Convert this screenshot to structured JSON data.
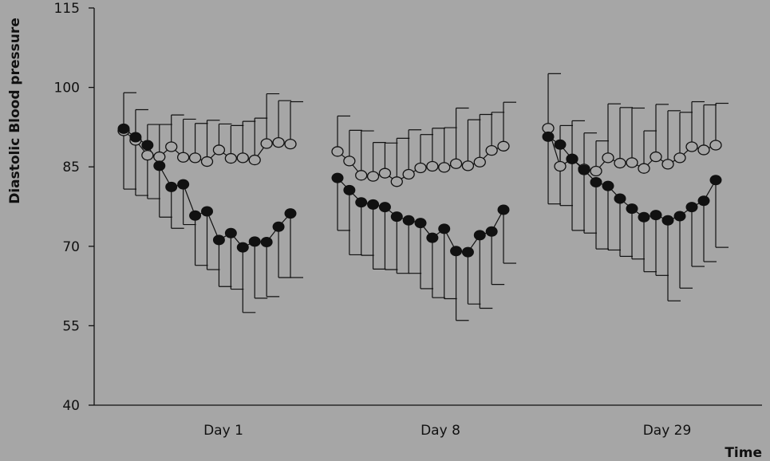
{
  "chart_data": {
    "type": "line",
    "title": "",
    "xlabel": "Time",
    "ylabel": "Diastolic Blood pressure",
    "ylim": [
      40,
      115
    ],
    "yticks": [
      40,
      55,
      70,
      85,
      100,
      115
    ],
    "xticks": [
      "Day 1",
      "Day 8",
      "Day 29"
    ],
    "grid": false,
    "legend": "none",
    "marker_colors": {
      "filled": "#111111",
      "open_fill": "#a6a6a6",
      "line": "#111111"
    },
    "groups": [
      {
        "label": "Day 1",
        "open": {
          "values": [
            91.8,
            90.0,
            87.2,
            86.9,
            88.8,
            86.8,
            86.7,
            86.0,
            88.2,
            86.6,
            86.7,
            86.3,
            89.4,
            89.6,
            89.3
          ],
          "error_upper": [
            99,
            95.8,
            93,
            93,
            94.8,
            94,
            93.2,
            93.8,
            93.1,
            92.8,
            93.6,
            94.2,
            98.8,
            97.5,
            97.3
          ]
        },
        "filled": {
          "values": [
            92.2,
            90.6,
            89.1,
            85.2,
            81.2,
            81.7,
            75.8,
            76.6,
            71.2,
            72.5,
            69.8,
            70.9,
            70.8,
            73.7,
            76.2
          ],
          "error_lower": [
            80.8,
            79.6,
            79,
            75.5,
            73.4,
            74.1,
            66.4,
            65.6,
            62.4,
            61.9,
            57.5,
            60.2,
            60.5,
            64.1,
            64.1
          ]
        }
      },
      {
        "label": "Day 8",
        "open": {
          "values": [
            87.9,
            86.1,
            83.4,
            83.2,
            83.8,
            82.2,
            83.6,
            84.8,
            85.1,
            84.9,
            85.6,
            85.2,
            85.9,
            88.1,
            88.9
          ],
          "error_upper": [
            94.6,
            91.9,
            91.8,
            89.6,
            89.5,
            90.4,
            92,
            91.1,
            92.3,
            92.4,
            96.1,
            93.9,
            94.9,
            95.3,
            97.2
          ]
        },
        "filled": {
          "values": [
            82.9,
            80.6,
            78.3,
            77.9,
            77.4,
            75.6,
            74.9,
            74.4,
            71.6,
            73.3,
            69.1,
            68.9,
            72.1,
            72.8,
            76.9
          ],
          "error_lower": [
            73,
            68.4,
            68.3,
            65.7,
            65.6,
            64.9,
            64.9,
            62,
            60.3,
            60.1,
            56,
            59.1,
            58.3,
            62.8,
            66.8
          ]
        }
      },
      {
        "label": "Day 29",
        "open": {
          "values": [
            92.3,
            85.1,
            86.5,
            84.6,
            84.2,
            86.7,
            85.7,
            85.8,
            84.7,
            86.9,
            85.5,
            86.7,
            88.8,
            88.2,
            89.1
          ],
          "error_upper": [
            102.6,
            92.8,
            93.7,
            91.4,
            89.9,
            96.9,
            96.2,
            96.1,
            91.8,
            96.8,
            95.6,
            95.3,
            97.3,
            96.7,
            97
          ]
        },
        "filled": {
          "values": [
            90.7,
            89.2,
            86.5,
            84.4,
            82.1,
            81.4,
            79,
            77.1,
            75.5,
            75.9,
            74.9,
            75.7,
            77.4,
            78.6,
            82.5
          ],
          "error_lower": [
            78,
            77.7,
            73,
            72.5,
            69.5,
            69.3,
            68.1,
            67.6,
            65.2,
            64.5,
            59.7,
            62.1,
            66.2,
            67.1,
            69.8
          ]
        }
      }
    ]
  }
}
